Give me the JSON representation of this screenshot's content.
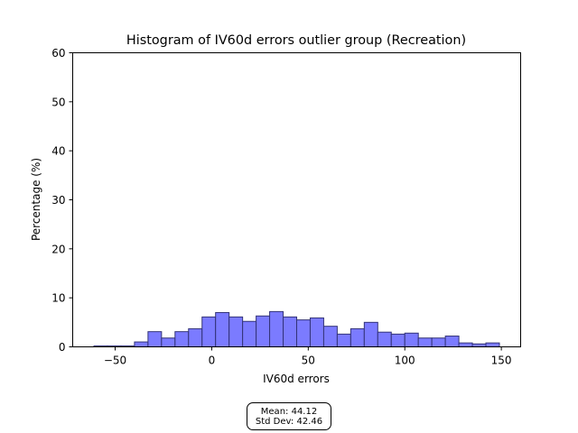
{
  "chart_data": {
    "type": "bar",
    "title": "Histogram of IV60d errors outlier group (Recreation)",
    "xlabel": "IV60d errors",
    "ylabel": "Percentage (%)",
    "xlim": [
      -72,
      160
    ],
    "ylim": [
      0,
      60
    ],
    "xticks": [
      -50,
      0,
      50,
      100,
      150
    ],
    "xtick_labels": [
      "−50",
      "0",
      "50",
      "100",
      "150"
    ],
    "yticks": [
      0,
      10,
      20,
      30,
      40,
      50,
      60
    ],
    "ytick_labels": [
      "0",
      "10",
      "20",
      "30",
      "40",
      "50",
      "60"
    ],
    "grid": false,
    "bar_color": "#7b7bff",
    "edge_color": "#333377",
    "bin_width": 7,
    "bin_starts": [
      -61,
      -54,
      -47,
      -40,
      -33,
      -26,
      -19,
      -12,
      -5,
      2,
      9,
      16,
      23,
      30,
      37,
      44,
      51,
      58,
      65,
      72,
      79,
      86,
      93,
      100,
      107,
      114,
      121,
      128,
      135,
      142
    ],
    "values": [
      0.2,
      0.2,
      0.2,
      1.0,
      3.1,
      1.8,
      3.1,
      3.7,
      6.1,
      7.0,
      6.1,
      5.2,
      6.3,
      7.2,
      6.1,
      5.5,
      5.9,
      4.2,
      2.6,
      3.7,
      5.0,
      3.0,
      2.6,
      2.8,
      1.8,
      1.8,
      2.2,
      0.8,
      0.6,
      0.8
    ]
  },
  "stats": {
    "mean_label": "Mean: 44.12",
    "std_label": "Std Dev: 42.46"
  }
}
